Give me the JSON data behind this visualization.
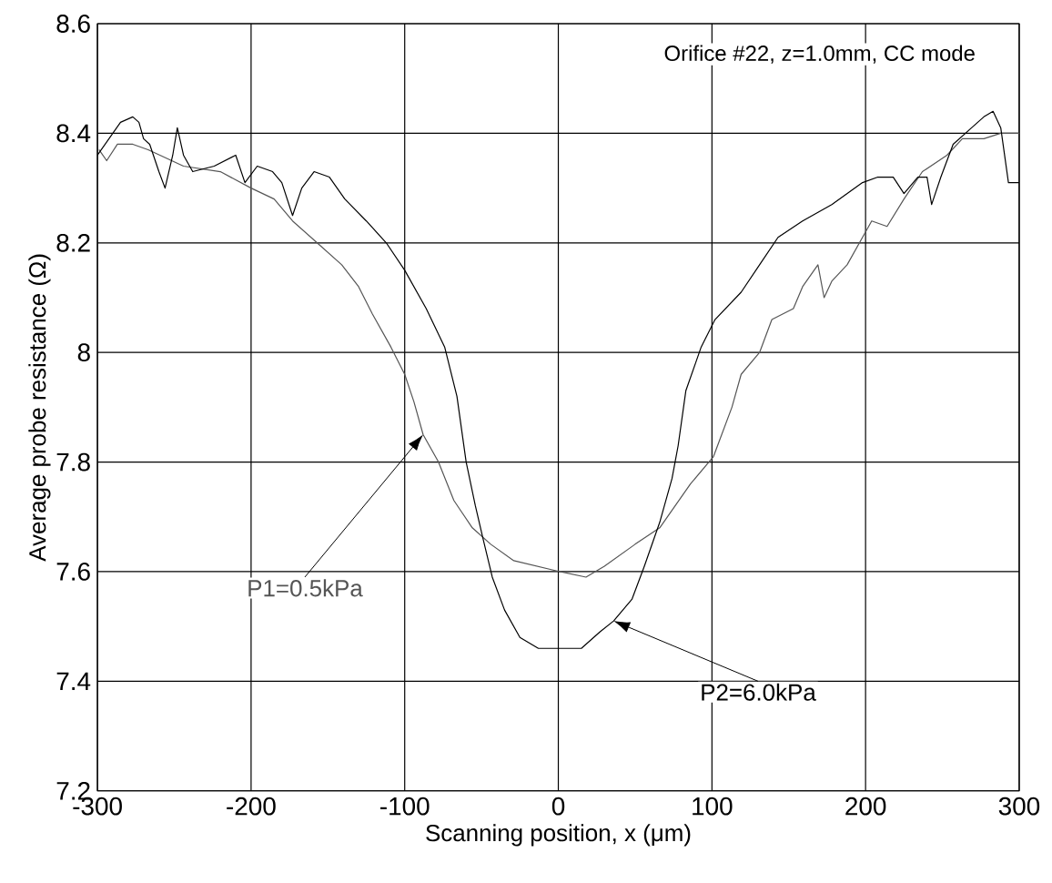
{
  "chart_data": {
    "type": "line",
    "title": "Orifice #22, z=1.0mm, CC mode",
    "xlabel": "Scanning position, x (μm)",
    "ylabel": "Average probe resistance (Ω)",
    "xlim": [
      -300,
      300
    ],
    "ylim": [
      7.2,
      8.6
    ],
    "xticks": [
      -300,
      -200,
      -100,
      0,
      100,
      200,
      300
    ],
    "yticks": [
      7.2,
      7.4,
      7.6,
      7.8,
      8,
      8.2,
      8.4,
      8.6
    ],
    "grid": true,
    "line_style": "solid",
    "series": [
      {
        "name": "P1=0.5kPa",
        "color": "#555555",
        "x": [
          -299,
          -294,
          -287,
          -277,
          -267,
          -244,
          -220,
          -200,
          -185,
          -173,
          -157,
          -141,
          -130,
          -121,
          -109,
          -100,
          -94,
          -88,
          -78,
          -68,
          -56,
          -44,
          -29,
          1,
          18,
          30,
          50,
          66,
          86,
          101,
          113,
          119,
          131,
          139,
          153,
          159,
          169,
          173,
          178,
          188,
          198,
          204,
          214,
          225,
          237,
          253,
          263,
          277,
          288,
          300
        ],
        "values": [
          8.37,
          8.35,
          8.38,
          8.38,
          8.37,
          8.34,
          8.33,
          8.3,
          8.28,
          8.24,
          8.2,
          8.16,
          8.12,
          8.07,
          8.01,
          7.96,
          7.91,
          7.85,
          7.8,
          7.73,
          7.68,
          7.65,
          7.62,
          7.6,
          7.59,
          7.61,
          7.65,
          7.68,
          7.76,
          7.81,
          7.9,
          7.96,
          8.0,
          8.06,
          8.08,
          8.12,
          8.16,
          8.1,
          8.13,
          8.16,
          8.21,
          8.24,
          8.23,
          8.28,
          8.33,
          8.36,
          8.39,
          8.39,
          8.4,
          8.4
        ]
      },
      {
        "name": "P2=6.0kPa",
        "color": "#000000",
        "x": [
          -300,
          -285,
          -277,
          -273,
          -270,
          -266,
          -260,
          -256,
          -251,
          -248,
          -244,
          -238,
          -224,
          -210,
          -204,
          -196,
          -186,
          -180,
          -173,
          -167,
          -159,
          -149,
          -139,
          -125,
          -112,
          -100,
          -86,
          -74,
          -66,
          -60,
          -54,
          -49,
          -43,
          -35,
          -25,
          -13,
          1,
          15,
          27,
          36,
          48,
          56,
          66,
          74,
          78,
          83,
          93,
          102,
          119,
          131,
          143,
          159,
          178,
          198,
          208,
          218,
          225,
          234,
          240,
          243,
          249,
          257,
          269,
          277,
          283,
          288,
          293,
          300
        ],
        "values": [
          8.36,
          8.42,
          8.43,
          8.42,
          8.39,
          8.38,
          8.33,
          8.3,
          8.36,
          8.41,
          8.36,
          8.33,
          8.34,
          8.36,
          8.31,
          8.34,
          8.33,
          8.31,
          8.25,
          8.3,
          8.33,
          8.32,
          8.28,
          8.24,
          8.2,
          8.15,
          8.08,
          8.01,
          7.92,
          7.8,
          7.72,
          7.66,
          7.59,
          7.53,
          7.48,
          7.46,
          7.46,
          7.46,
          7.49,
          7.51,
          7.55,
          7.61,
          7.69,
          7.77,
          7.83,
          7.93,
          8.01,
          8.06,
          8.11,
          8.16,
          8.21,
          8.24,
          8.27,
          8.31,
          8.32,
          8.32,
          8.29,
          8.32,
          8.32,
          8.27,
          8.32,
          8.38,
          8.41,
          8.43,
          8.44,
          8.41,
          8.31,
          8.31
        ]
      }
    ]
  }
}
